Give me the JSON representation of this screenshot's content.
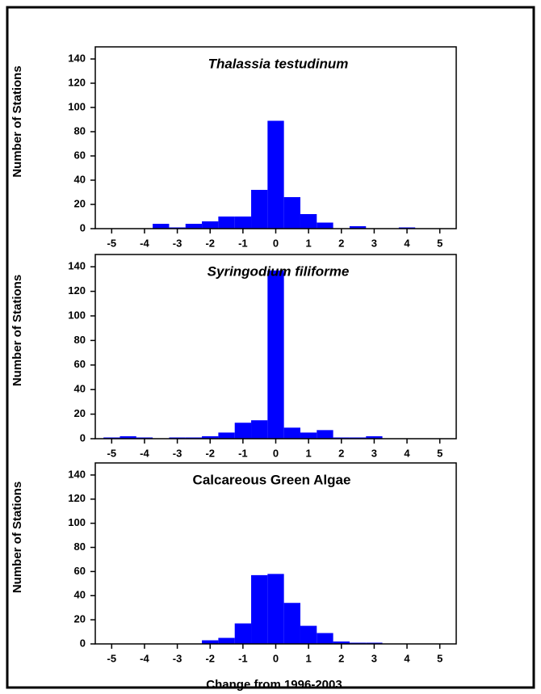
{
  "chart_data": [
    {
      "type": "histogram",
      "title": "Thalassia testudinum",
      "title_style": "italic",
      "ylabel": "Number of Stations",
      "bins": [
        -5.25,
        -4.75,
        -4.25,
        -3.75,
        -3.25,
        -2.75,
        -2.25,
        -1.75,
        -1.25,
        -0.75,
        -0.25,
        0.25,
        0.75,
        1.25,
        1.75,
        2.25,
        2.75,
        3.25,
        3.75,
        4.25,
        4.75,
        5.25
      ],
      "values": [
        0,
        0,
        0,
        4,
        1,
        4,
        6,
        10,
        10,
        32,
        89,
        26,
        12,
        5,
        0,
        2,
        0,
        0,
        1,
        0,
        0
      ],
      "color": "#0000ff",
      "xlim": [
        -5.5,
        5.5
      ],
      "xticks": [
        -5,
        -4,
        -3,
        -2,
        -1,
        0,
        1,
        2,
        3,
        4,
        5
      ],
      "ylim": [
        0,
        150
      ],
      "yticks": [
        0,
        20,
        40,
        60,
        80,
        100,
        120,
        140
      ]
    },
    {
      "type": "histogram",
      "title": "Syringodium filiforme",
      "title_style": "italic",
      "ylabel": "Number of Stations",
      "bins": [
        -5.25,
        -4.75,
        -4.25,
        -3.75,
        -3.25,
        -2.75,
        -2.25,
        -1.75,
        -1.25,
        -0.75,
        -0.25,
        0.25,
        0.75,
        1.25,
        1.75,
        2.25,
        2.75,
        3.25,
        3.75,
        4.25,
        4.75,
        5.25
      ],
      "values": [
        1,
        2,
        1,
        0,
        1,
        1,
        2,
        5,
        13,
        15,
        137,
        9,
        5,
        7,
        1,
        1,
        2,
        0,
        0,
        0,
        0
      ],
      "color": "#0000ff",
      "xlim": [
        -5.5,
        5.5
      ],
      "xticks": [
        -5,
        -4,
        -3,
        -2,
        -1,
        0,
        1,
        2,
        3,
        4,
        5
      ],
      "ylim": [
        0,
        150
      ],
      "yticks": [
        0,
        20,
        40,
        60,
        80,
        100,
        120,
        140
      ]
    },
    {
      "type": "histogram",
      "title": "Calcareous Green Algae",
      "title_style": "normal",
      "ylabel": "Number of Stations",
      "xlabel": "Change from 1996-2003",
      "bins": [
        -5.25,
        -4.75,
        -4.25,
        -3.75,
        -3.25,
        -2.75,
        -2.25,
        -1.75,
        -1.25,
        -0.75,
        -0.25,
        0.25,
        0.75,
        1.25,
        1.75,
        2.25,
        2.75,
        3.25,
        3.75,
        4.25,
        4.75,
        5.25
      ],
      "values": [
        0,
        0,
        0,
        0,
        0,
        0,
        3,
        5,
        17,
        57,
        58,
        34,
        15,
        9,
        2,
        1,
        1,
        0,
        0,
        0,
        0
      ],
      "color": "#0000ff",
      "xlim": [
        -5.5,
        5.5
      ],
      "xticks": [
        -5,
        -4,
        -3,
        -2,
        -1,
        0,
        1,
        2,
        3,
        4,
        5
      ],
      "ylim": [
        0,
        150
      ],
      "yticks": [
        0,
        20,
        40,
        60,
        80,
        100,
        120,
        140
      ]
    }
  ]
}
